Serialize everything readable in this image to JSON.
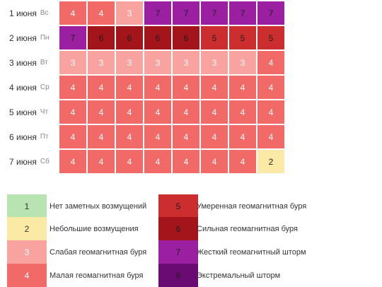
{
  "chart_data": {
    "type": "heatmap",
    "rows": [
      {
        "date": "1 июня",
        "dow": "Вс",
        "values": [
          4,
          4,
          3,
          7,
          7,
          7,
          7,
          7
        ]
      },
      {
        "date": "2 июня",
        "dow": "Пн",
        "values": [
          7,
          6,
          6,
          6,
          6,
          5,
          5,
          5
        ]
      },
      {
        "date": "3 июня",
        "dow": "Вт",
        "values": [
          3,
          3,
          3,
          3,
          3,
          3,
          3,
          4
        ]
      },
      {
        "date": "4 июня",
        "dow": "Ср",
        "values": [
          4,
          4,
          4,
          4,
          4,
          4,
          4,
          4
        ]
      },
      {
        "date": "5 июня",
        "dow": "Чт",
        "values": [
          4,
          4,
          4,
          4,
          4,
          4,
          4,
          4
        ]
      },
      {
        "date": "6 июня",
        "dow": "Пт",
        "values": [
          4,
          4,
          4,
          4,
          4,
          4,
          4,
          4
        ]
      },
      {
        "date": "7 июня",
        "dow": "Сб",
        "values": [
          4,
          4,
          4,
          4,
          4,
          4,
          4,
          2
        ]
      }
    ],
    "colors": {
      "1": "#b7e4b0",
      "2": "#fbeaa6",
      "3": "#f9a3a0",
      "4": "#f16a68",
      "5": "#cc2d2e",
      "6": "#a3151a",
      "7": "#9b1fa1",
      "8": "#6a0a73"
    },
    "legend": [
      {
        "level": "1",
        "label": "Нет заметных возмущений"
      },
      {
        "level": "2",
        "label": "Небольшие возмущения"
      },
      {
        "level": "3",
        "label": "Слабая геомагнитная буря"
      },
      {
        "level": "4",
        "label": "Малая геомагнитная буря"
      },
      {
        "level": "5",
        "label": "Умеренная геомагнитная буря"
      },
      {
        "level": "6",
        "label": "Сильная геомагнитная буря"
      },
      {
        "level": "7",
        "label": "Жесткий геомагнитный шторм"
      },
      {
        "level": "8",
        "label": "Экстремальный шторм"
      }
    ]
  }
}
